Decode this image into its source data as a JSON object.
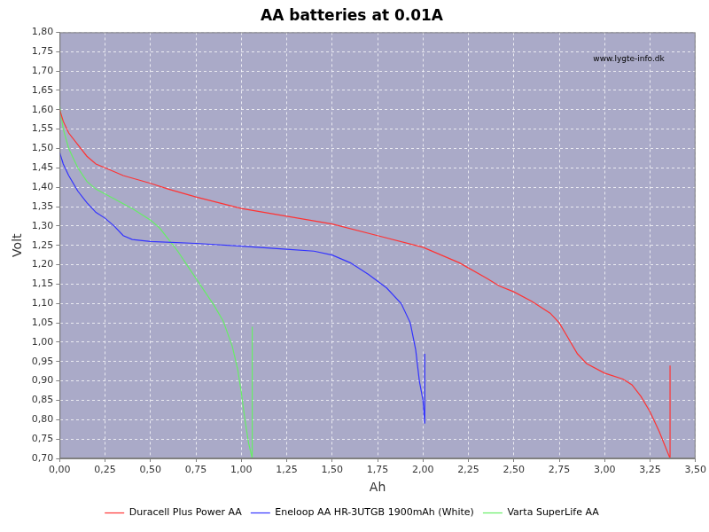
{
  "chart_data": {
    "type": "line",
    "title": "AA batteries at 0.01A",
    "x_label": "Ah",
    "y_label": "Volt",
    "annotation": "www.lygte-info.dk",
    "xlim": [
      0,
      3.5
    ],
    "ylim": [
      0.7,
      1.8
    ],
    "xticks": [
      {
        "value": 0,
        "label": "0,00"
      },
      {
        "value": 0.25,
        "label": "0,25"
      },
      {
        "value": 0.5,
        "label": "0,50"
      },
      {
        "value": 0.75,
        "label": "0,75"
      },
      {
        "value": 1,
        "label": "1,00"
      },
      {
        "value": 1.25,
        "label": "1,25"
      },
      {
        "value": 1.5,
        "label": "1,50"
      },
      {
        "value": 1.75,
        "label": "1,75"
      },
      {
        "value": 2,
        "label": "2,00"
      },
      {
        "value": 2.25,
        "label": "2,25"
      },
      {
        "value": 2.5,
        "label": "2,50"
      },
      {
        "value": 2.75,
        "label": "2,75"
      },
      {
        "value": 3,
        "label": "3,00"
      },
      {
        "value": 3.25,
        "label": "3,25"
      },
      {
        "value": 3.5,
        "label": "3,50"
      }
    ],
    "yticks": [
      {
        "value": 0.7,
        "label": "0,70"
      },
      {
        "value": 0.75,
        "label": "0,75"
      },
      {
        "value": 0.8,
        "label": "0,80"
      },
      {
        "value": 0.85,
        "label": "0,85"
      },
      {
        "value": 0.9,
        "label": "0,90"
      },
      {
        "value": 0.95,
        "label": "0,95"
      },
      {
        "value": 1,
        "label": "1,00"
      },
      {
        "value": 1.05,
        "label": "1,05"
      },
      {
        "value": 1.1,
        "label": "1,10"
      },
      {
        "value": 1.15,
        "label": "1,15"
      },
      {
        "value": 1.2,
        "label": "1,20"
      },
      {
        "value": 1.25,
        "label": "1,25"
      },
      {
        "value": 1.3,
        "label": "1,30"
      },
      {
        "value": 1.35,
        "label": "1,35"
      },
      {
        "value": 1.4,
        "label": "1,40"
      },
      {
        "value": 1.45,
        "label": "1,45"
      },
      {
        "value": 1.5,
        "label": "1,50"
      },
      {
        "value": 1.55,
        "label": "1,55"
      },
      {
        "value": 1.6,
        "label": "1,60"
      },
      {
        "value": 1.65,
        "label": "1,65"
      },
      {
        "value": 1.7,
        "label": "1,70"
      },
      {
        "value": 1.75,
        "label": "1,75"
      },
      {
        "value": 1.8,
        "label": "1,80"
      }
    ],
    "grid": true,
    "legend": "bottom",
    "marker": "none",
    "series": [
      {
        "name": "Duracell Plus Power AA",
        "color": "#ff3333",
        "x": [
          0,
          0.02,
          0.05,
          0.1,
          0.15,
          0.2,
          0.25,
          0.35,
          0.5,
          0.6,
          0.75,
          1.0,
          1.25,
          1.5,
          1.75,
          2.0,
          2.2,
          2.35,
          2.42,
          2.5,
          2.6,
          2.7,
          2.75,
          2.8,
          2.85,
          2.9,
          3.0,
          3.1,
          3.15,
          3.2,
          3.25,
          3.3,
          3.36,
          3.36
        ],
        "values": [
          1.6,
          1.57,
          1.54,
          1.51,
          1.48,
          1.46,
          1.45,
          1.43,
          1.41,
          1.395,
          1.375,
          1.345,
          1.325,
          1.305,
          1.275,
          1.245,
          1.205,
          1.165,
          1.145,
          1.13,
          1.105,
          1.075,
          1.05,
          1.01,
          0.97,
          0.945,
          0.92,
          0.905,
          0.89,
          0.86,
          0.82,
          0.77,
          0.7,
          0.94
        ]
      },
      {
        "name": "Eneloop AA HR-3UTGB 1900mAh (White)",
        "color": "#3333ff",
        "x": [
          0,
          0.02,
          0.05,
          0.1,
          0.15,
          0.2,
          0.25,
          0.3,
          0.35,
          0.4,
          0.5,
          0.75,
          1.0,
          1.25,
          1.4,
          1.5,
          1.6,
          1.7,
          1.8,
          1.88,
          1.93,
          1.96,
          1.98,
          2.0,
          2.01,
          2.01
        ],
        "values": [
          1.49,
          1.46,
          1.43,
          1.39,
          1.36,
          1.335,
          1.32,
          1.3,
          1.275,
          1.265,
          1.26,
          1.255,
          1.248,
          1.24,
          1.235,
          1.225,
          1.205,
          1.175,
          1.14,
          1.1,
          1.05,
          0.98,
          0.9,
          0.85,
          0.79,
          0.97
        ]
      },
      {
        "name": "Varta SuperLife AA",
        "color": "#66ee66",
        "x": [
          0,
          0.02,
          0.05,
          0.1,
          0.15,
          0.2,
          0.3,
          0.4,
          0.5,
          0.55,
          0.6,
          0.65,
          0.7,
          0.75,
          0.8,
          0.85,
          0.9,
          0.95,
          0.98,
          1.0,
          1.02,
          1.04,
          1.06,
          1.06
        ],
        "values": [
          1.61,
          1.55,
          1.5,
          1.45,
          1.415,
          1.395,
          1.37,
          1.345,
          1.315,
          1.295,
          1.265,
          1.235,
          1.2,
          1.165,
          1.13,
          1.095,
          1.055,
          0.99,
          0.93,
          0.87,
          0.8,
          0.74,
          0.7,
          1.04
        ]
      }
    ]
  }
}
